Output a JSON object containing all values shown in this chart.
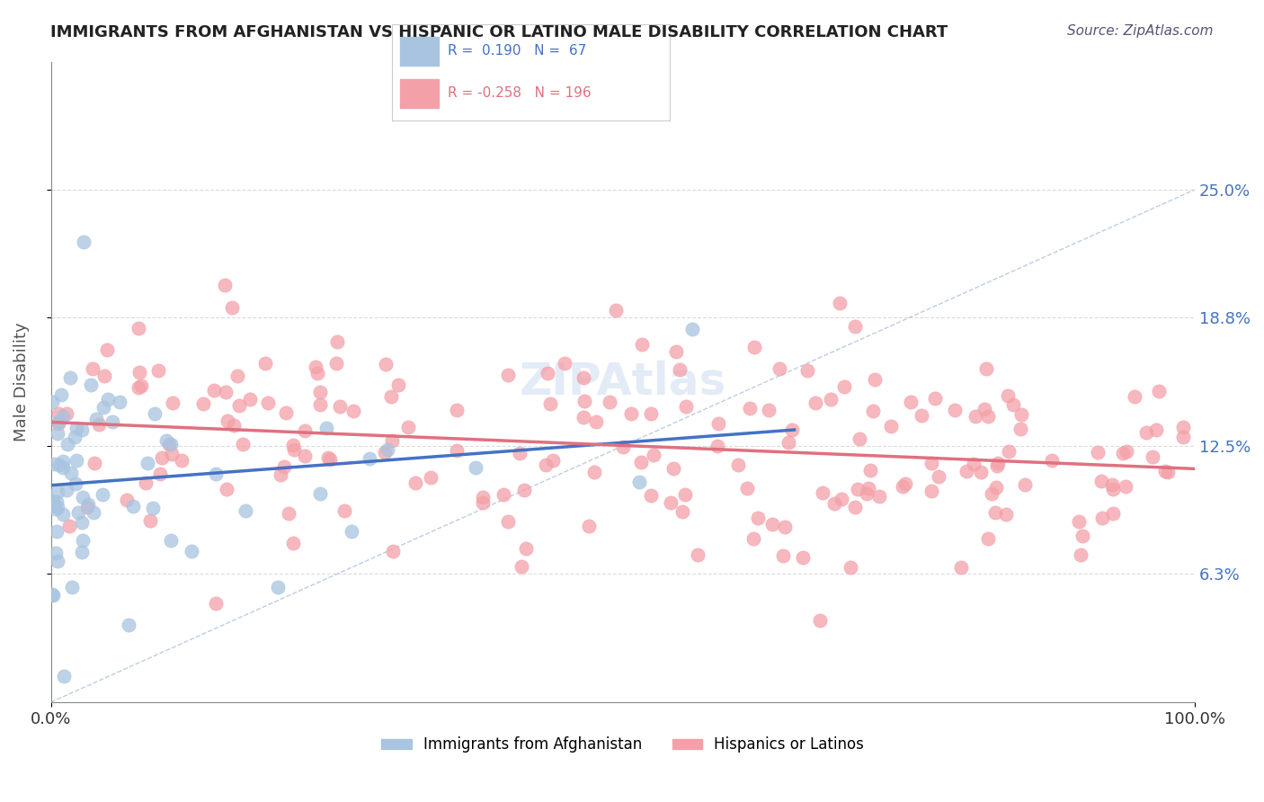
{
  "title": "IMMIGRANTS FROM AFGHANISTAN VS HISPANIC OR LATINO MALE DISABILITY CORRELATION CHART",
  "source": "Source: ZipAtlas.com",
  "xlabel": "",
  "ylabel": "Male Disability",
  "legend_label_blue": "Immigrants from Afghanistan",
  "legend_label_pink": "Hispanics or Latinos",
  "R_blue": 0.19,
  "N_blue": 67,
  "R_pink": -0.258,
  "N_pink": 196,
  "xlim": [
    0.0,
    100.0
  ],
  "ylim": [
    0.0,
    31.25
  ],
  "yticks": [
    6.25,
    12.5,
    18.75,
    25.0
  ],
  "ytick_labels": [
    "6.3%",
    "12.5%",
    "18.8%",
    "25.0%"
  ],
  "xtick_labels": [
    "0.0%",
    "100.0%"
  ],
  "color_blue": "#a8c4e0",
  "color_pink": "#f4a0a8",
  "line_blue": "#4472c4",
  "line_pink": "#e07080",
  "line_diag": "#a0b8d8",
  "background_color": "#ffffff",
  "grid_color": "#cccccc",
  "title_color": "#222222",
  "axis_label_color": "#555555",
  "tick_label_color_right": "#4472c4",
  "seed_blue": 42,
  "seed_pink": 99
}
